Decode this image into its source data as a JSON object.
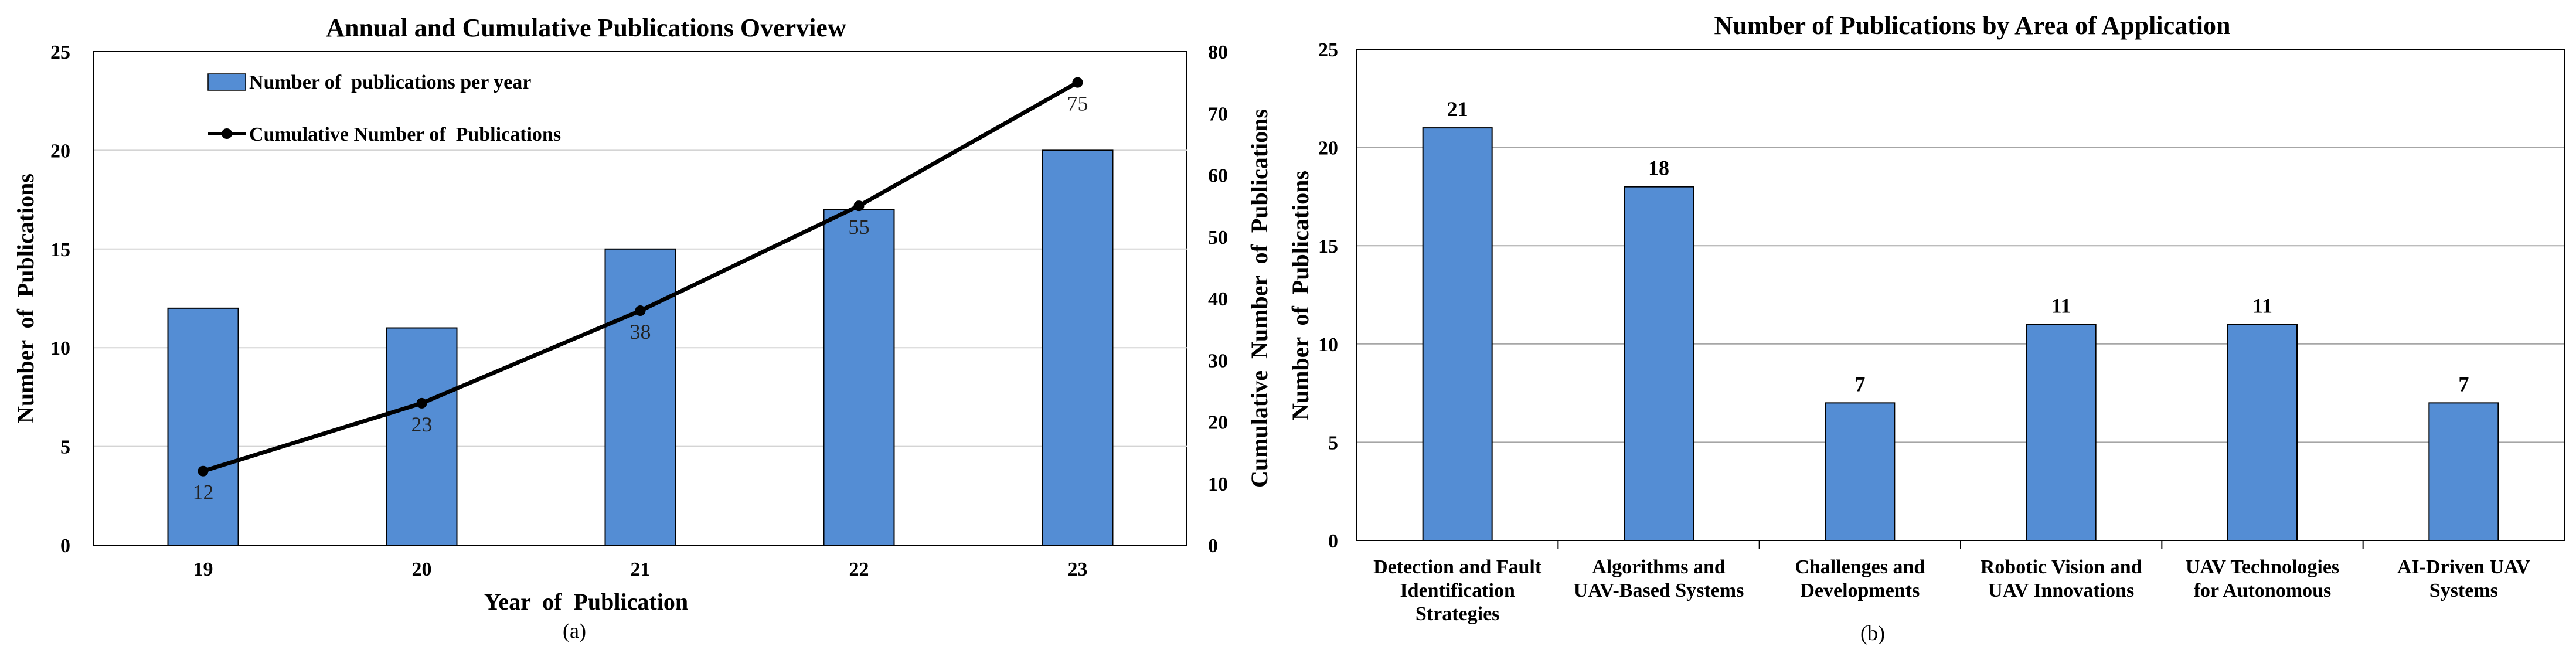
{
  "chart_data": [
    {
      "type": "bar+line",
      "title": "Annual and Cumulative Publications Overview",
      "xlabel": "Year  of  Publication",
      "ylabel": "Number  of  Publications",
      "y2label": "Cumulative  Number  of  Publications",
      "categories": [
        "19",
        "20",
        "21",
        "22",
        "23"
      ],
      "ylim": [
        0,
        25
      ],
      "yticks": [
        0,
        5,
        10,
        15,
        20,
        25
      ],
      "y2lim": [
        0,
        80
      ],
      "y2ticks": [
        0,
        10,
        20,
        30,
        40,
        50,
        60,
        70,
        80
      ],
      "series": [
        {
          "name": "Number of  publications per year",
          "kind": "bar",
          "axis": "left",
          "values": [
            12,
            11,
            15,
            17,
            20
          ],
          "color": "#548dd4"
        },
        {
          "name": "Cumulative Number of  Publications",
          "kind": "line",
          "axis": "right",
          "values": [
            12,
            23,
            38,
            55,
            75
          ],
          "color": "#000000"
        }
      ],
      "caption": "(a)",
      "grid": true,
      "legend": "top-left"
    },
    {
      "type": "bar",
      "title": "Number of Publications by Area of Application",
      "xlabel": "",
      "ylabel": "Number  of  Publications",
      "categories": [
        [
          "Detection and Fault",
          "Identification",
          "Strategies"
        ],
        [
          "Algorithms and",
          "UAV-Based Systems"
        ],
        [
          "Challenges and",
          "Developments"
        ],
        [
          "Robotic Vision and",
          "UAV Innovations"
        ],
        [
          "UAV Technologies",
          "for Autonomous"
        ],
        [
          "AI-Driven UAV",
          "Systems"
        ]
      ],
      "values": [
        21,
        18,
        7,
        11,
        11,
        7
      ],
      "ylim": [
        0,
        25
      ],
      "yticks": [
        0,
        5,
        10,
        15,
        20,
        25
      ],
      "color": "#548dd4",
      "caption": "(b)",
      "grid": true
    }
  ]
}
